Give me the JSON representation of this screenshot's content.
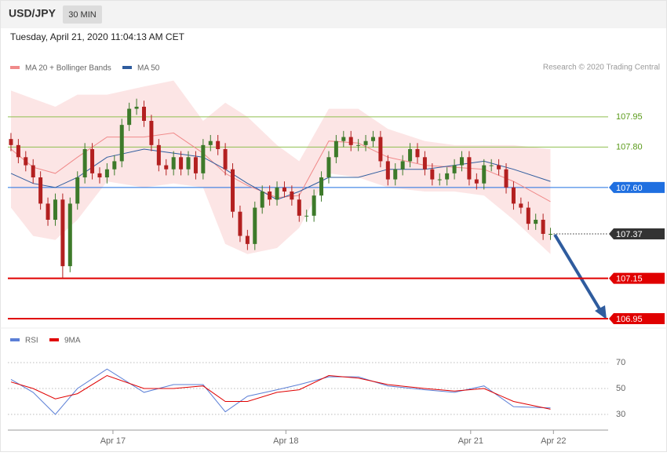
{
  "chart_data": [
    {
      "type": "candlestick",
      "title": "USD/JPY",
      "timeframe": "30 MIN",
      "subtitle": "Tuesday, April 21, 2020 11:04:13 AM CET",
      "source": "Research © 2020 Trading Central",
      "xlim": [
        -0.42,
        80.8
      ],
      "ylim": [
        106.915,
        108.14
      ],
      "candles": {
        "up_color": "#3d7a2a",
        "down_color": "#b32020",
        "open": [
          107.84,
          107.81,
          107.75,
          107.71,
          107.65,
          107.52,
          107.44,
          107.54,
          107.21,
          107.52,
          107.65,
          107.79,
          107.67,
          107.65,
          107.69,
          107.73,
          107.91,
          107.99,
          108.0,
          107.93,
          107.81,
          107.71,
          107.69,
          107.75,
          107.69,
          107.75,
          107.67,
          107.81,
          107.83,
          107.79,
          107.69,
          107.48,
          107.36,
          107.32,
          107.5,
          107.58,
          107.54,
          107.6,
          107.58,
          107.54,
          107.46,
          107.46,
          107.56,
          107.65,
          107.75,
          107.83,
          107.85,
          107.81,
          107.81,
          107.83,
          107.85,
          107.73,
          107.64,
          107.69,
          107.73,
          107.79,
          107.75,
          107.69,
          107.64,
          107.64,
          107.67,
          107.71,
          107.75,
          107.64,
          107.62,
          107.71,
          107.71,
          107.69,
          107.6,
          107.52,
          107.5,
          107.42,
          107.44,
          107.37
        ],
        "high": [
          107.87,
          107.84,
          107.78,
          107.74,
          107.68,
          107.55,
          107.57,
          107.57,
          107.55,
          107.68,
          107.82,
          107.82,
          107.7,
          107.72,
          107.76,
          107.94,
          108.02,
          108.04,
          108.03,
          107.96,
          107.84,
          107.74,
          107.78,
          107.78,
          107.78,
          107.78,
          107.84,
          107.86,
          107.86,
          107.82,
          107.72,
          107.51,
          107.39,
          107.53,
          107.61,
          107.61,
          107.63,
          107.63,
          107.61,
          107.57,
          107.49,
          107.59,
          107.68,
          107.78,
          107.86,
          107.88,
          107.88,
          107.84,
          107.86,
          107.88,
          107.88,
          107.76,
          107.72,
          107.76,
          107.82,
          107.82,
          107.78,
          107.72,
          107.67,
          107.7,
          107.74,
          107.78,
          107.78,
          107.67,
          107.74,
          107.74,
          107.74,
          107.72,
          107.63,
          107.55,
          107.53,
          107.47,
          107.47,
          107.4
        ],
        "low": [
          107.78,
          107.72,
          107.68,
          107.62,
          107.49,
          107.41,
          107.41,
          107.15,
          107.18,
          107.49,
          107.62,
          107.64,
          107.62,
          107.62,
          107.66,
          107.7,
          107.88,
          107.96,
          107.9,
          107.78,
          107.68,
          107.66,
          107.66,
          107.66,
          107.66,
          107.64,
          107.64,
          107.78,
          107.76,
          107.66,
          107.45,
          107.33,
          107.29,
          107.29,
          107.47,
          107.51,
          107.51,
          107.55,
          107.51,
          107.43,
          107.43,
          107.43,
          107.53,
          107.62,
          107.72,
          107.8,
          107.78,
          107.78,
          107.78,
          107.8,
          107.7,
          107.61,
          107.61,
          107.66,
          107.7,
          107.72,
          107.66,
          107.61,
          107.61,
          107.61,
          107.64,
          107.68,
          107.61,
          107.59,
          107.59,
          107.68,
          107.66,
          107.57,
          107.49,
          107.47,
          107.39,
          107.39,
          107.34,
          107.34
        ],
        "close": [
          107.81,
          107.75,
          107.71,
          107.65,
          107.52,
          107.44,
          107.54,
          107.21,
          107.52,
          107.65,
          107.79,
          107.67,
          107.65,
          107.69,
          107.73,
          107.91,
          107.99,
          108.0,
          107.93,
          107.81,
          107.71,
          107.69,
          107.75,
          107.69,
          107.75,
          107.67,
          107.81,
          107.83,
          107.79,
          107.69,
          107.48,
          107.36,
          107.32,
          107.5,
          107.58,
          107.54,
          107.6,
          107.58,
          107.54,
          107.46,
          107.46,
          107.56,
          107.65,
          107.75,
          107.83,
          107.85,
          107.81,
          107.81,
          107.83,
          107.85,
          107.73,
          107.64,
          107.69,
          107.73,
          107.79,
          107.75,
          107.69,
          107.64,
          107.64,
          107.67,
          107.71,
          107.75,
          107.64,
          107.62,
          107.71,
          107.71,
          107.69,
          107.6,
          107.52,
          107.5,
          107.42,
          107.44,
          107.37,
          107.37
        ]
      },
      "series": [
        {
          "name": "MA 20 + Bollinger Bands",
          "color": "#f08a8a",
          "x": [
            0,
            3,
            6,
            9,
            13,
            18,
            22,
            26,
            29,
            32,
            36,
            39,
            43,
            47,
            51,
            56,
            60,
            64,
            68,
            73
          ],
          "values": [
            107.79,
            107.7,
            107.67,
            107.75,
            107.85,
            107.85,
            107.87,
            107.77,
            107.67,
            107.61,
            107.55,
            107.56,
            107.83,
            107.82,
            107.75,
            107.71,
            107.7,
            107.69,
            107.63,
            107.53
          ],
          "upper": [
            108.08,
            108.04,
            108.0,
            108.06,
            108.06,
            108.1,
            108.13,
            107.93,
            108.02,
            107.95,
            107.81,
            107.73,
            107.99,
            107.99,
            107.89,
            107.83,
            107.81,
            107.81,
            107.81,
            107.79
          ],
          "lower": [
            107.5,
            107.36,
            107.34,
            107.44,
            107.63,
            107.6,
            107.62,
            107.6,
            107.32,
            107.27,
            107.3,
            107.4,
            107.67,
            107.65,
            107.6,
            107.58,
            107.58,
            107.56,
            107.44,
            107.27
          ]
        },
        {
          "name": "MA 50",
          "color": "#2f5c9e",
          "x": [
            0,
            3,
            6,
            9,
            13,
            18,
            22,
            26,
            29,
            32,
            36,
            39,
            43,
            47,
            51,
            56,
            60,
            64,
            68,
            73
          ],
          "values": [
            107.67,
            107.62,
            107.6,
            107.65,
            107.75,
            107.79,
            107.77,
            107.75,
            107.69,
            107.62,
            107.54,
            107.58,
            107.65,
            107.65,
            107.69,
            107.69,
            107.71,
            107.73,
            107.69,
            107.63
          ]
        }
      ],
      "levels": [
        {
          "value": 107.95,
          "label": "107.95",
          "color": "#8fbf4f",
          "boxed": false,
          "dotted": false,
          "width": 1
        },
        {
          "value": 107.8,
          "label": "107.80",
          "color": "#8fbf4f",
          "boxed": false,
          "dotted": false,
          "width": 1
        },
        {
          "value": 107.6,
          "label": "107.60",
          "color": "#1f6fe0",
          "boxed": true,
          "dotted": false,
          "width": 1
        },
        {
          "value": 107.37,
          "label": "107.37",
          "color": "#333333",
          "boxed": true,
          "dotted": true,
          "width": 1
        },
        {
          "value": 107.15,
          "label": "107.15",
          "color": "#e00000",
          "boxed": true,
          "dotted": false,
          "width": 2
        },
        {
          "value": 106.95,
          "label": "106.95",
          "color": "#e00000",
          "boxed": true,
          "dotted": false,
          "width": 2
        }
      ]
    },
    {
      "type": "line",
      "xlim": [
        -0.42,
        80.8
      ],
      "ylim": [
        19.7,
        83.3
      ],
      "yticks": [
        30,
        50,
        70
      ],
      "xticks": [
        {
          "value": 13.8,
          "label": "Apr 17"
        },
        {
          "value": 37.2,
          "label": "Apr 18"
        },
        {
          "value": 62.2,
          "label": "Apr 21"
        },
        {
          "value": 73.4,
          "label": "Apr 22"
        }
      ],
      "series": [
        {
          "name": "RSI",
          "color": "#5b7fd6",
          "x": [
            0,
            3,
            6,
            9,
            13,
            18,
            22,
            26,
            29,
            32,
            36,
            39,
            43,
            47,
            51,
            56,
            60,
            64,
            68,
            73
          ],
          "values": [
            57,
            47,
            30,
            50,
            65,
            47,
            53,
            53,
            32,
            44,
            49,
            53,
            59,
            59,
            52,
            49,
            47,
            52,
            36,
            35
          ]
        },
        {
          "name": "9MA",
          "color": "#e00000",
          "x": [
            0,
            3,
            6,
            9,
            13,
            18,
            22,
            26,
            29,
            32,
            36,
            39,
            43,
            47,
            51,
            56,
            60,
            64,
            68,
            73
          ],
          "values": [
            55,
            50,
            42,
            46,
            60,
            50,
            50,
            52,
            40,
            40,
            47,
            49,
            60,
            58,
            53,
            50,
            48,
            50,
            40,
            34
          ]
        }
      ]
    }
  ]
}
